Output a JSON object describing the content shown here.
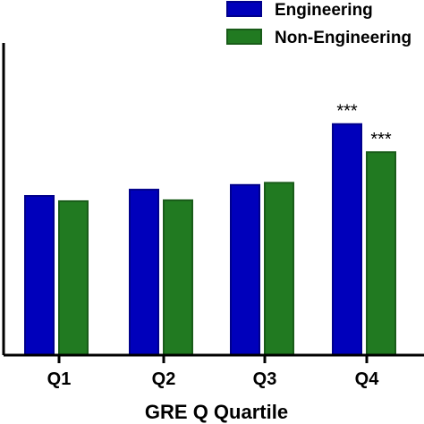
{
  "chart_data": {
    "type": "bar",
    "title": "",
    "xlabel": "GRE Q Quartile",
    "ylabel": "",
    "categories": [
      "Q1",
      "Q2",
      "Q3",
      "Q4"
    ],
    "ylim": [
      0,
      100
    ],
    "grid": false,
    "legend_position": "top-right",
    "series": [
      {
        "name": "Engineering",
        "color": "#0000bb",
        "values": [
          51,
          53,
          54.5,
          74
        ],
        "annotations": [
          "",
          "",
          "",
          "***"
        ]
      },
      {
        "name": "Non-Engineering",
        "color": "#217a21",
        "values": [
          49.3,
          49.6,
          55.2,
          65
        ],
        "annotations": [
          "",
          "",
          "",
          "***"
        ]
      }
    ]
  }
}
